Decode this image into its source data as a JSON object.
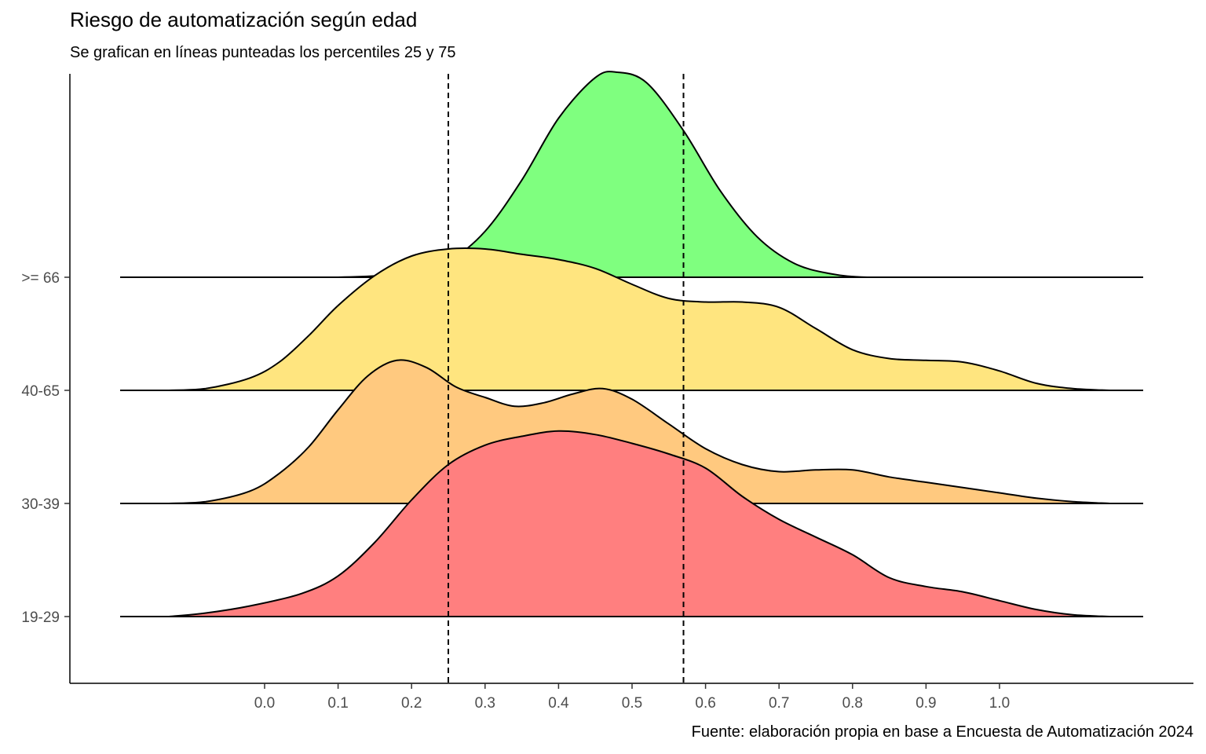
{
  "chart_data": {
    "type": "ridgeline",
    "title": "Riesgo de automatización según edad",
    "subtitle": "Se grafican en líneas punteadas los percentiles 25 y 75",
    "caption": "Fuente: elaboración propia en base a Encuesta de Automatización 2024",
    "xlabel": "",
    "ylabel": "",
    "x_ticks": [
      0.0,
      0.1,
      0.2,
      0.3,
      0.4,
      0.5,
      0.6,
      0.7,
      0.8,
      0.9,
      1.0
    ],
    "x_tick_labels": [
      "0.0",
      "0.1",
      "0.2",
      "0.3",
      "0.4",
      "0.5",
      "0.6",
      "0.7",
      "0.8",
      "0.9",
      "1.0"
    ],
    "xlim": [
      -0.2,
      1.27
    ],
    "percentile_lines": [
      {
        "name": "P25",
        "x": 0.25
      },
      {
        "name": "P75",
        "x": 0.57
      }
    ],
    "series": [
      {
        "name": "19-29",
        "color": "#FF7F7F",
        "x": [
          -0.13,
          -0.08,
          -0.02,
          0.05,
          0.1,
          0.15,
          0.2,
          0.25,
          0.3,
          0.35,
          0.4,
          0.45,
          0.5,
          0.55,
          0.6,
          0.65,
          0.7,
          0.75,
          0.8,
          0.85,
          0.9,
          0.95,
          1.0,
          1.05,
          1.1,
          1.15
        ],
        "density": [
          0.0,
          0.02,
          0.06,
          0.13,
          0.23,
          0.42,
          0.66,
          0.86,
          0.97,
          1.02,
          1.05,
          1.03,
          0.98,
          0.92,
          0.84,
          0.68,
          0.55,
          0.45,
          0.35,
          0.22,
          0.17,
          0.14,
          0.09,
          0.04,
          0.01,
          0.0
        ]
      },
      {
        "name": "30-39",
        "color": "#FFC97F",
        "x": [
          -0.13,
          -0.08,
          -0.02,
          0.02,
          0.06,
          0.1,
          0.14,
          0.18,
          0.22,
          0.26,
          0.3,
          0.34,
          0.38,
          0.42,
          0.46,
          0.5,
          0.55,
          0.6,
          0.65,
          0.7,
          0.75,
          0.8,
          0.85,
          0.9,
          0.95,
          1.0,
          1.05,
          1.1,
          1.15
        ],
        "density": [
          0.0,
          0.01,
          0.07,
          0.17,
          0.32,
          0.53,
          0.72,
          0.81,
          0.77,
          0.66,
          0.6,
          0.55,
          0.57,
          0.62,
          0.65,
          0.59,
          0.45,
          0.31,
          0.22,
          0.18,
          0.19,
          0.19,
          0.15,
          0.12,
          0.09,
          0.06,
          0.03,
          0.01,
          0.0
        ]
      },
      {
        "name": "40-65",
        "color": "#FFE57F",
        "x": [
          -0.13,
          -0.08,
          -0.02,
          0.02,
          0.06,
          0.1,
          0.15,
          0.2,
          0.25,
          0.3,
          0.35,
          0.4,
          0.45,
          0.5,
          0.55,
          0.6,
          0.65,
          0.7,
          0.75,
          0.8,
          0.85,
          0.9,
          0.95,
          1.0,
          1.05,
          1.1,
          1.15
        ],
        "density": [
          0.0,
          0.01,
          0.07,
          0.16,
          0.31,
          0.48,
          0.65,
          0.76,
          0.8,
          0.8,
          0.77,
          0.74,
          0.69,
          0.6,
          0.52,
          0.5,
          0.5,
          0.47,
          0.35,
          0.23,
          0.18,
          0.17,
          0.16,
          0.11,
          0.04,
          0.01,
          0.0
        ]
      },
      {
        "name": ">= 66",
        "color": "#7FFF7F",
        "x": [
          -0.13,
          0.0,
          0.1,
          0.16,
          0.2,
          0.25,
          0.3,
          0.35,
          0.4,
          0.45,
          0.48,
          0.52,
          0.57,
          0.62,
          0.67,
          0.72,
          0.77,
          0.82,
          0.9,
          1.0,
          1.15
        ],
        "density": [
          0.0,
          0.0,
          0.0,
          0.01,
          0.03,
          0.09,
          0.26,
          0.55,
          0.9,
          1.13,
          1.16,
          1.1,
          0.83,
          0.49,
          0.23,
          0.08,
          0.02,
          0.0,
          0.0,
          0.0,
          0.0
        ]
      }
    ]
  }
}
